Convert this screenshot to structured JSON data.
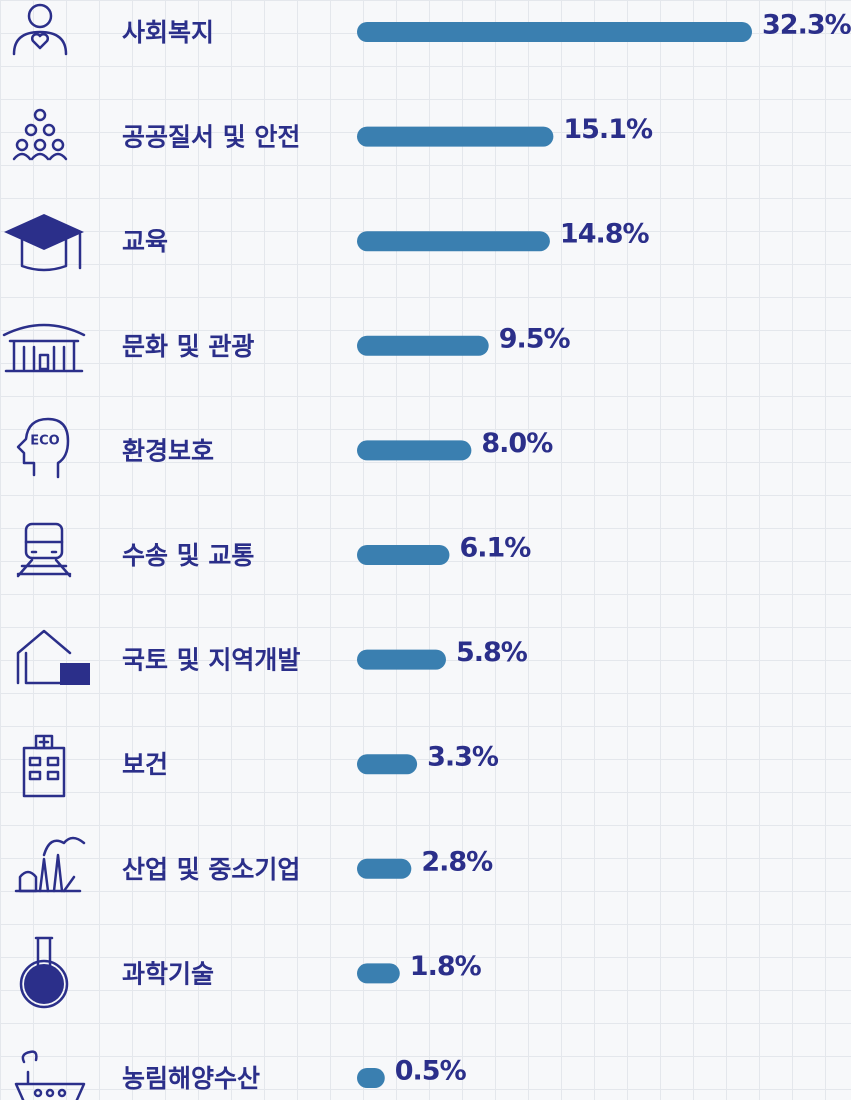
{
  "chart_data": {
    "type": "bar",
    "categories": [
      "사회복지",
      "공공질서 및 안전",
      "교육",
      "문화 및 관광",
      "환경보호",
      "수송  및 교통",
      "국토 및 지역개발",
      "보건",
      "산업 및 중소기업",
      "과학기술",
      "농림해양수산"
    ],
    "values": [
      32.3,
      15.1,
      14.8,
      9.5,
      8.0,
      6.1,
      5.8,
      3.3,
      2.8,
      1.8,
      0.5
    ],
    "value_labels": [
      "32.3%",
      "15.1%",
      "14.8%",
      "9.5%",
      "8.0%",
      "6.1%",
      "5.8%",
      "3.3%",
      "2.8%",
      "1.8%",
      "0.5%"
    ],
    "color": "#3a7fb0"
  }
}
